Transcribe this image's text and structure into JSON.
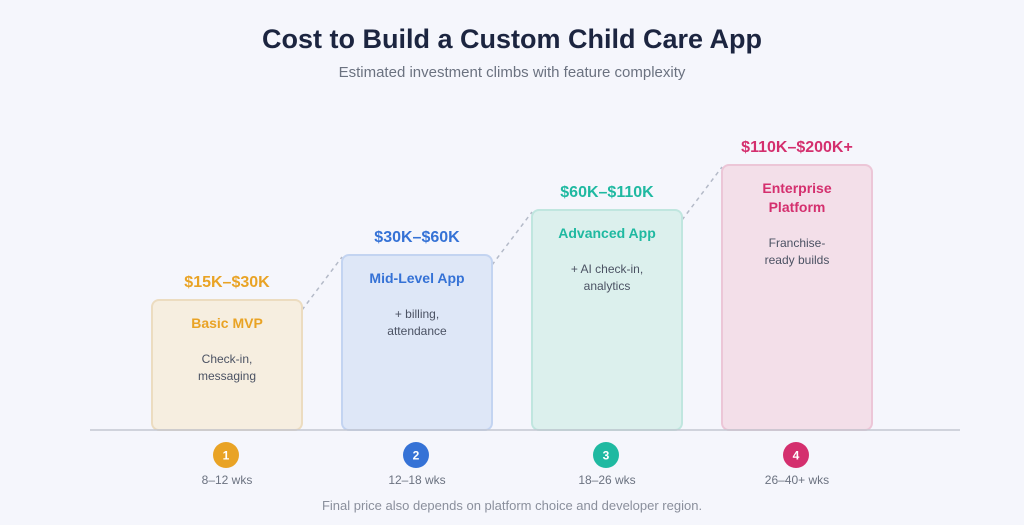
{
  "header": {
    "title": "Cost to Build a Custom Child Care App",
    "subtitle": "Estimated investment climbs with feature complexity"
  },
  "footnote": "Final price also depends on platform choice and developer region.",
  "chart_data": {
    "type": "bar",
    "title": "Cost to Build a Custom Child Care App",
    "subtitle": "Estimated investment climbs with feature complexity",
    "categories": [
      "Basic MVP",
      "Mid-Level App",
      "Advanced App",
      "Enterprise Platform"
    ],
    "tiers": [
      {
        "step": "1",
        "name_lines": [
          "Basic MVP"
        ],
        "price": "$15K–$30K",
        "desc_lines": [
          "Check-in,",
          "messaging"
        ],
        "timeline": "8–12 wks",
        "level": 1,
        "color": "#e9a325",
        "fill": "#f6eee0",
        "border": "#ecdcc0"
      },
      {
        "step": "2",
        "name_lines": [
          "Mid-Level App"
        ],
        "price": "$30K–$60K",
        "desc_lines": [
          "+ billing,",
          "attendance"
        ],
        "timeline": "12–18 wks",
        "level": 2,
        "color": "#3572d6",
        "fill": "#dee7f7",
        "border": "#c3d4f1"
      },
      {
        "step": "3",
        "name_lines": [
          "Advanced App"
        ],
        "price": "$60K–$110K",
        "desc_lines": [
          "+ AI check-in,",
          "analytics"
        ],
        "timeline": "18–26 wks",
        "level": 3,
        "color": "#1fb9a1",
        "fill": "#dcf0ed",
        "border": "#c0e6df"
      },
      {
        "step": "4",
        "name_lines": [
          "Enterprise",
          "Platform"
        ],
        "price": "$110K–$200K+",
        "desc_lines": [
          "Franchise-",
          "ready builds"
        ],
        "timeline": "26–40+ wks",
        "level": 4,
        "color": "#d42f6e",
        "fill": "#f3dfe9",
        "border": "#ecc6d7"
      }
    ],
    "connector": "dashed",
    "grid": false,
    "legend": "none"
  }
}
